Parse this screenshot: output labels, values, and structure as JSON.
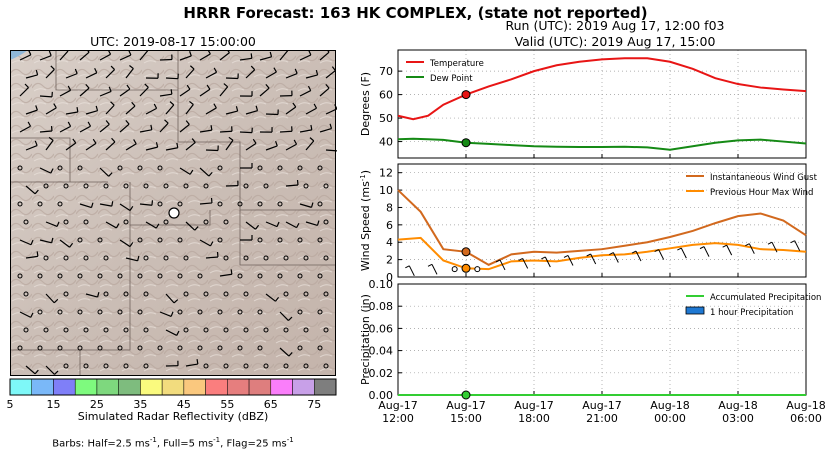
{
  "figure": {
    "title": "HRRR Forecast: 163 HK COMPLEX, (state not reported)",
    "run_line": "Run (UTC): 2019 Aug 17, 12:00 f03",
    "valid_line": "Valid (UTC): 2019 Aug 17, 15:00"
  },
  "map": {
    "title": "UTC: 2019-08-17 15:00:00",
    "colorbar_label": "Simulated Radar Reflectivity (dBZ)",
    "colorbar_ticks": [
      "5",
      "15",
      "25",
      "35",
      "45",
      "55",
      "65",
      "75"
    ],
    "colorbar_colors": [
      "#7ef8f8",
      "#7ab8f8",
      "#7f7ff8",
      "#7efa7e",
      "#7ed87e",
      "#7ebc7e",
      "#fafa7e",
      "#f2dc7e",
      "#fac87e",
      "#fa7e7e",
      "#e67e7e",
      "#de7e7e",
      "#fa7efa",
      "#c8a0e8",
      "#7e7e7e"
    ],
    "barbs_note_prefix": "Barbs: Half=2.5 ms",
    "barbs_note_mid1": ", Full=5 ms",
    "barbs_note_mid2": ", Flag=25 ms",
    "barbs_sup": "-1",
    "marker": "fire-location-marker"
  },
  "chart_data": [
    {
      "type": "line",
      "ylabel": "Degrees (F)",
      "ylim": [
        33,
        79
      ],
      "yticks": [
        "40",
        "50",
        "60",
        "70"
      ],
      "grid": true,
      "legend_position": "top-left",
      "x_hours": [
        0,
        0.67,
        1.33,
        2,
        3,
        4,
        5,
        6,
        7,
        8,
        9,
        10,
        11,
        12,
        13,
        14,
        15,
        16,
        17,
        18
      ],
      "series": [
        {
          "name": "Temperature",
          "color": "#e81515",
          "values": [
            51,
            49.5,
            51,
            55.7,
            60,
            63.5,
            66.5,
            70,
            72.5,
            74,
            75,
            75.5,
            75.5,
            74,
            71,
            67,
            64.5,
            63,
            62.2,
            61.5
          ]
        },
        {
          "name": "Dew Point",
          "color": "#158a15",
          "values": [
            41,
            41.2,
            41,
            40.7,
            39.5,
            39,
            38.5,
            38,
            37.8,
            37.7,
            37.7,
            37.8,
            37.5,
            36.5,
            38,
            39.5,
            40.5,
            40.8,
            40,
            39.2
          ]
        }
      ],
      "highlight_x": 3
    },
    {
      "type": "line",
      "ylabel": "Wind Speed (ms",
      "ylabel_sup": "-1",
      "ylabel_tail": ")",
      "ylim": [
        0,
        13
      ],
      "yticks": [
        "0",
        "2",
        "4",
        "6",
        "8",
        "10",
        "12"
      ],
      "grid": true,
      "legend_position": "top-right",
      "x_hours": [
        0,
        1,
        2,
        3,
        4,
        5,
        6,
        7,
        8,
        9,
        10,
        11,
        12,
        13,
        14,
        15,
        16,
        17,
        18
      ],
      "series": [
        {
          "name": "Instantaneous Wind Gust",
          "color": "#d2691e",
          "values": [
            10,
            7.5,
            3.2,
            2.9,
            1.4,
            2.6,
            2.9,
            2.8,
            3.0,
            3.2,
            3.6,
            4.0,
            4.6,
            5.3,
            6.2,
            7.0,
            7.3,
            6.5,
            4.8
          ]
        },
        {
          "name": "Previous Hour Max Wind",
          "color": "#ff8c00",
          "values": [
            4.3,
            4.5,
            1.9,
            1.0,
            0.9,
            1.8,
            1.9,
            1.8,
            2.2,
            2.5,
            2.6,
            2.9,
            3.3,
            3.7,
            3.9,
            3.7,
            3.2,
            3.1,
            2.9
          ]
        }
      ],
      "highlight_x": 3
    },
    {
      "type": "area",
      "ylabel": "Precipitation (in)",
      "ylim": [
        0,
        0.1
      ],
      "yticks": [
        "0.00",
        "0.02",
        "0.04",
        "0.06",
        "0.08",
        "0.10"
      ],
      "grid": true,
      "legend_position": "top-right",
      "series": [
        {
          "name": "Accumulated Precipitation",
          "color": "#32cd32",
          "values": [
            0,
            0,
            0,
            0,
            0,
            0,
            0,
            0,
            0,
            0,
            0,
            0,
            0,
            0,
            0,
            0,
            0,
            0,
            0
          ]
        },
        {
          "name": "1 hour Precipitation",
          "color": "#1e78d2",
          "values": [
            0,
            0,
            0,
            0,
            0,
            0,
            0,
            0,
            0,
            0,
            0,
            0,
            0,
            0,
            0,
            0,
            0,
            0,
            0
          ]
        }
      ],
      "xtick_labels": [
        [
          "Aug-17",
          "12:00"
        ],
        [
          "Aug-17",
          "15:00"
        ],
        [
          "Aug-17",
          "18:00"
        ],
        [
          "Aug-17",
          "21:00"
        ],
        [
          "Aug-18",
          "00:00"
        ],
        [
          "Aug-18",
          "03:00"
        ],
        [
          "Aug-18",
          "06:00"
        ]
      ],
      "xtick_hours": [
        0,
        3,
        6,
        9,
        12,
        15,
        18
      ]
    }
  ]
}
